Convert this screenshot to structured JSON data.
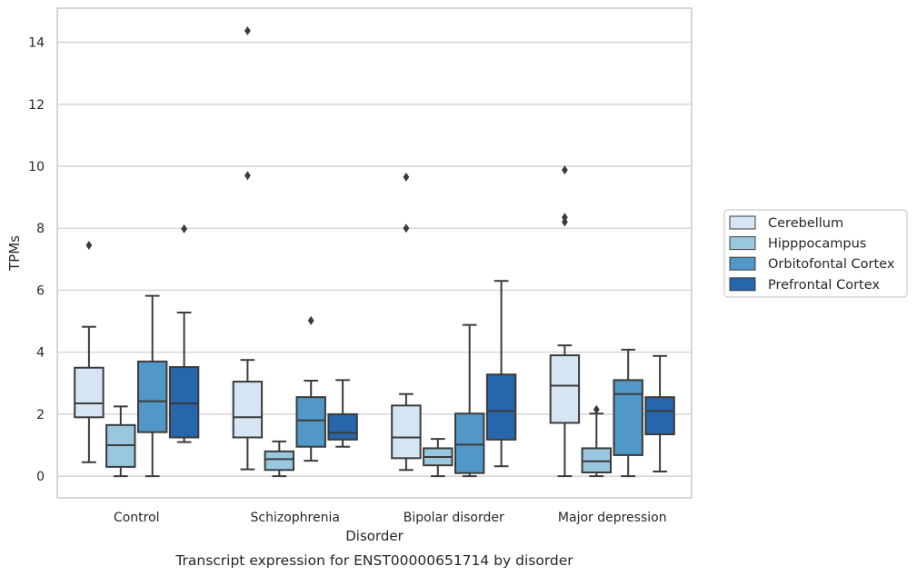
{
  "caption": "Transcript expression for ENST00000651714 by disorder",
  "chart_data": {
    "type": "box",
    "title": "",
    "xlabel": "Disorder",
    "ylabel": "TPMs",
    "ylim": [
      -0.7,
      15.1
    ],
    "yticks": [
      0,
      2,
      4,
      6,
      8,
      10,
      12,
      14
    ],
    "grid": "horizontal",
    "legend_position": "right",
    "categories": [
      "Control",
      "Schizophrenia",
      "Bipolar disorder",
      "Major depression"
    ],
    "series": [
      {
        "name": "Cerebellum",
        "color": "#d6e5f4",
        "boxes": [
          {
            "whisker_low": 0.45,
            "q1": 1.9,
            "median": 2.35,
            "q3": 3.5,
            "whisker_high": 4.82,
            "outliers": [
              7.45
            ]
          },
          {
            "whisker_low": 0.22,
            "q1": 1.25,
            "median": 1.9,
            "q3": 3.05,
            "whisker_high": 3.75,
            "outliers": [
              9.7,
              14.37
            ]
          },
          {
            "whisker_low": 0.2,
            "q1": 0.58,
            "median": 1.25,
            "q3": 2.28,
            "whisker_high": 2.65,
            "outliers": [
              8.0,
              9.65
            ]
          },
          {
            "whisker_low": 0.0,
            "q1": 1.72,
            "median": 2.92,
            "q3": 3.9,
            "whisker_high": 4.22,
            "outliers": [
              8.2,
              8.35,
              9.88
            ]
          }
        ]
      },
      {
        "name": "Hipppocampus",
        "color": "#9ac7e0",
        "boxes": [
          {
            "whisker_low": 0.0,
            "q1": 0.3,
            "median": 1.0,
            "q3": 1.65,
            "whisker_high": 2.25,
            "outliers": []
          },
          {
            "whisker_low": 0.0,
            "q1": 0.2,
            "median": 0.55,
            "q3": 0.8,
            "whisker_high": 1.12,
            "outliers": []
          },
          {
            "whisker_low": 0.0,
            "q1": 0.35,
            "median": 0.62,
            "q3": 0.9,
            "whisker_high": 1.2,
            "outliers": []
          },
          {
            "whisker_low": 0.0,
            "q1": 0.12,
            "median": 0.48,
            "q3": 0.9,
            "whisker_high": 2.02,
            "outliers": [
              2.15
            ]
          }
        ]
      },
      {
        "name": "Orbitofontal Cortex",
        "color": "#5197c7",
        "boxes": [
          {
            "whisker_low": 0.0,
            "q1": 1.42,
            "median": 2.42,
            "q3": 3.7,
            "whisker_high": 5.82,
            "outliers": []
          },
          {
            "whisker_low": 0.5,
            "q1": 0.95,
            "median": 1.8,
            "q3": 2.55,
            "whisker_high": 3.08,
            "outliers": [
              5.02
            ]
          },
          {
            "whisker_low": 0.0,
            "q1": 0.1,
            "median": 1.02,
            "q3": 2.02,
            "whisker_high": 4.88,
            "outliers": []
          },
          {
            "whisker_low": 0.0,
            "q1": 0.68,
            "median": 2.65,
            "q3": 3.1,
            "whisker_high": 4.08,
            "outliers": []
          }
        ]
      },
      {
        "name": "Prefrontal Cortex",
        "color": "#2766aa",
        "boxes": [
          {
            "whisker_low": 1.1,
            "q1": 1.25,
            "median": 2.35,
            "q3": 3.52,
            "whisker_high": 5.28,
            "outliers": [
              7.98
            ]
          },
          {
            "whisker_low": 0.95,
            "q1": 1.18,
            "median": 1.4,
            "q3": 2.0,
            "whisker_high": 3.1,
            "outliers": []
          },
          {
            "whisker_low": 0.32,
            "q1": 1.18,
            "median": 2.1,
            "q3": 3.28,
            "whisker_high": 6.3,
            "outliers": []
          },
          {
            "whisker_low": 0.15,
            "q1": 1.35,
            "median": 2.1,
            "q3": 2.55,
            "whisker_high": 3.88,
            "outliers": []
          }
        ]
      }
    ]
  }
}
